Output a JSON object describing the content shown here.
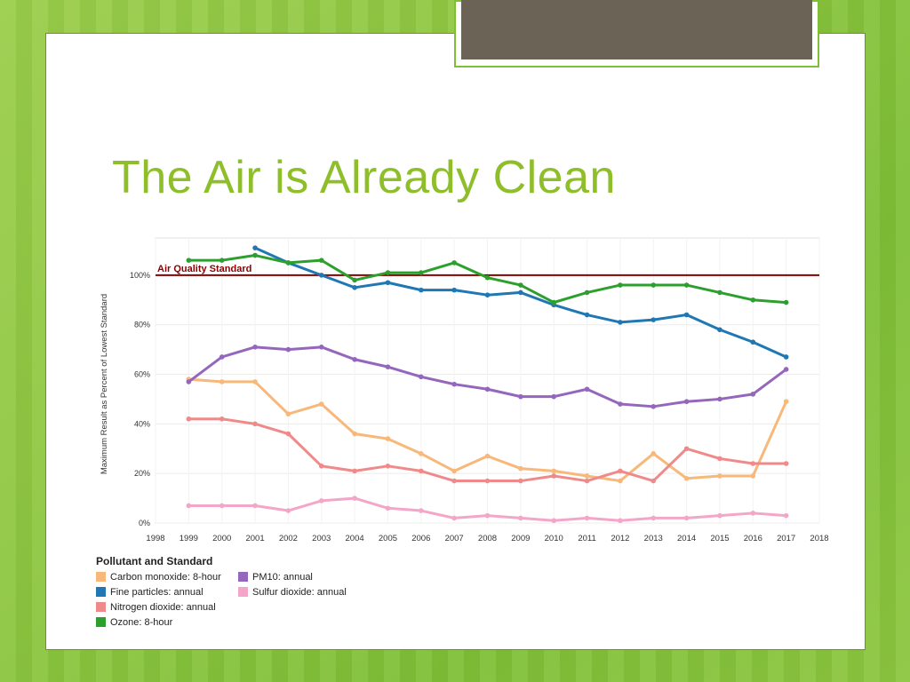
{
  "slide": {
    "title": "The Air is Already Clean"
  },
  "colors": {
    "title": "#8fbe2b",
    "standard_line": "#8b0000",
    "background": "#8cc63f"
  },
  "chart_data": {
    "type": "line",
    "ylabel": "Maximum Result as Percent of Lowest Standard",
    "xlabel": "",
    "xlim": [
      1998,
      2018
    ],
    "ylim": [
      0,
      115
    ],
    "x_ticks": [
      "1998",
      "1999",
      "2000",
      "2001",
      "2002",
      "2003",
      "2004",
      "2005",
      "2006",
      "2007",
      "2008",
      "2009",
      "2010",
      "2011",
      "2012",
      "2013",
      "2014",
      "2015",
      "2016",
      "2017",
      "2018"
    ],
    "y_ticks": [
      "0%",
      "20%",
      "40%",
      "60%",
      "80%",
      "100%"
    ],
    "reference_line": {
      "label": "Air Quality Standard",
      "value": 100,
      "color": "#8b0000"
    },
    "grid": true,
    "legend_title": "Pollutant and Standard",
    "legend_position": "bottom-left",
    "series": [
      {
        "name": "Carbon monoxide: 8-hour",
        "color": "#f7b87a",
        "x": [
          1999,
          2000,
          2001,
          2002,
          2003,
          2004,
          2005,
          2006,
          2007,
          2008,
          2009,
          2010,
          2011,
          2012,
          2013,
          2014,
          2015,
          2016,
          2017
        ],
        "values": [
          58,
          57,
          57,
          44,
          48,
          36,
          34,
          28,
          21,
          27,
          22,
          21,
          19,
          17,
          28,
          18,
          19,
          19,
          49
        ]
      },
      {
        "name": "PM10: annual",
        "color": "#9467bd",
        "x": [
          1999,
          2000,
          2001,
          2002,
          2003,
          2004,
          2005,
          2006,
          2007,
          2008,
          2009,
          2010,
          2011,
          2012,
          2013,
          2014,
          2015,
          2016,
          2017
        ],
        "values": [
          57,
          67,
          71,
          70,
          71,
          66,
          63,
          59,
          56,
          54,
          51,
          51,
          54,
          48,
          47,
          49,
          50,
          52,
          62
        ]
      },
      {
        "name": "Fine particles: annual",
        "color": "#1f77b4",
        "x": [
          2001,
          2002,
          2003,
          2004,
          2005,
          2006,
          2007,
          2008,
          2009,
          2010,
          2011,
          2012,
          2013,
          2014,
          2015,
          2016,
          2017
        ],
        "values": [
          111,
          105,
          100,
          95,
          97,
          94,
          94,
          92,
          93,
          88,
          84,
          81,
          82,
          84,
          78,
          73,
          67
        ]
      },
      {
        "name": "Sulfur dioxide: annual",
        "color": "#f4a6c8",
        "x": [
          1999,
          2000,
          2001,
          2002,
          2003,
          2004,
          2005,
          2006,
          2007,
          2008,
          2009,
          2010,
          2011,
          2012,
          2013,
          2014,
          2015,
          2016,
          2017
        ],
        "values": [
          7,
          7,
          7,
          5,
          9,
          10,
          6,
          5,
          2,
          3,
          2,
          1,
          2,
          1,
          2,
          2,
          3,
          4,
          3
        ]
      },
      {
        "name": "Nitrogen dioxide: annual",
        "color": "#f08a8a",
        "x": [
          1999,
          2000,
          2001,
          2002,
          2003,
          2004,
          2005,
          2006,
          2007,
          2008,
          2009,
          2010,
          2011,
          2012,
          2013,
          2014,
          2015,
          2016,
          2017
        ],
        "values": [
          42,
          42,
          40,
          36,
          23,
          21,
          23,
          21,
          17,
          17,
          17,
          19,
          17,
          21,
          17,
          30,
          26,
          24,
          24
        ]
      },
      {
        "name": "Ozone: 8-hour",
        "color": "#2ca02c",
        "x": [
          1999,
          2000,
          2001,
          2002,
          2003,
          2004,
          2005,
          2006,
          2007,
          2008,
          2009,
          2010,
          2011,
          2012,
          2013,
          2014,
          2015,
          2016,
          2017
        ],
        "values": [
          106,
          106,
          108,
          105,
          106,
          98,
          101,
          101,
          105,
          99,
          96,
          89,
          93,
          96,
          96,
          96,
          93,
          90,
          89
        ]
      }
    ],
    "legend_order": [
      "Carbon monoxide: 8-hour",
      "PM10: annual",
      "Fine particles: annual",
      "Sulfur dioxide: annual",
      "Nitrogen dioxide: annual",
      "",
      "Ozone: 8-hour",
      ""
    ]
  }
}
